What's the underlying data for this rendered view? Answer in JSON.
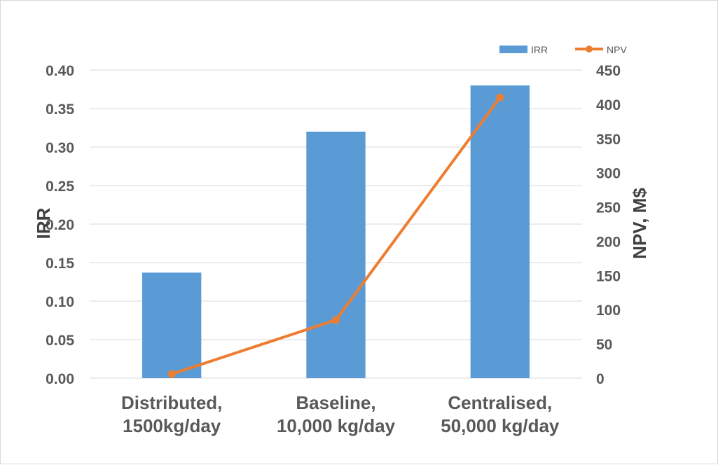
{
  "chart_data": {
    "type": "bar",
    "categories": [
      [
        "Distributed,",
        "1500kg/day"
      ],
      [
        "Baseline,",
        "10,000 kg/day"
      ],
      [
        "Centralised,",
        "50,000 kg/day"
      ]
    ],
    "series": [
      {
        "name": "IRR",
        "type": "bar",
        "axis": "left",
        "color": "#5B9BD5",
        "values": [
          0.137,
          0.32,
          0.38
        ]
      },
      {
        "name": "NPV",
        "type": "line",
        "axis": "right",
        "color": "#ED7D31",
        "marker": "circle",
        "values": [
          6,
          85,
          410
        ]
      }
    ],
    "y_left": {
      "label": "IRR",
      "ylim": [
        0,
        0.4
      ],
      "ticks": [
        "0.00",
        "0.05",
        "0.10",
        "0.15",
        "0.20",
        "0.25",
        "0.30",
        "0.35",
        "0.40"
      ]
    },
    "y_right": {
      "label": "NPV, M$",
      "ylim": [
        0,
        450
      ],
      "ticks": [
        "0",
        "50",
        "100",
        "150",
        "200",
        "250",
        "300",
        "350",
        "400",
        "450"
      ]
    },
    "grid": true,
    "legend": "top-right",
    "gridline_color": "#d9d9d9"
  }
}
